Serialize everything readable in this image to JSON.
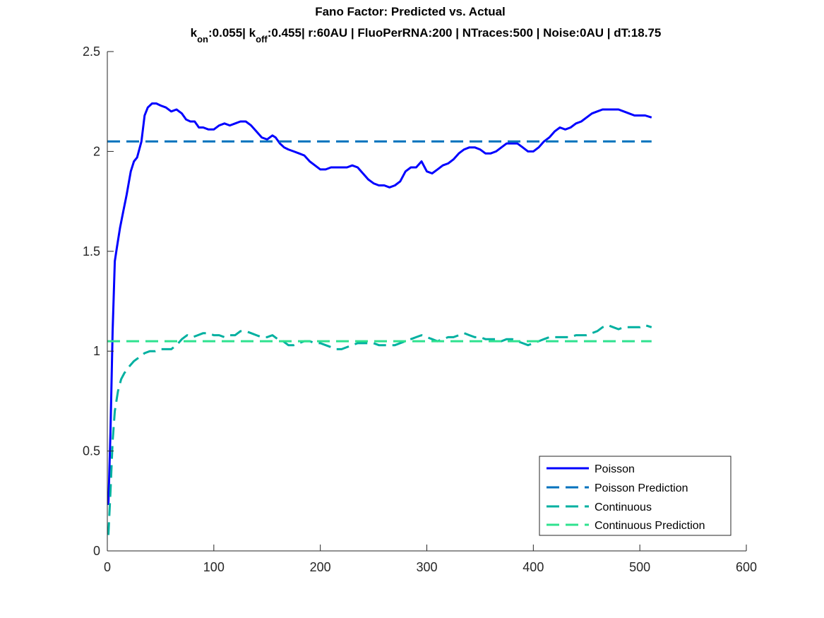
{
  "chart_data": {
    "type": "line",
    "title": "Fano Factor: Predicted vs. Actual",
    "subtitle": {
      "k_on_base": "k",
      "k_on_sub": "on",
      "k_on_value": ":0.055| ",
      "k_off_base": "k",
      "k_off_sub": "off",
      "rest": ":0.455| r:60AU | FluoPerRNA:200 | NTraces:500 | Noise:0AU | dT:18.75"
    },
    "xlabel": "",
    "ylabel": "",
    "xlim": [
      0,
      600
    ],
    "ylim": [
      0,
      2.5
    ],
    "xticks": [
      "0",
      "100",
      "200",
      "300",
      "400",
      "500",
      "600"
    ],
    "yticks": [
      "0",
      "0.5",
      "1",
      "1.5",
      "2",
      "2.5"
    ],
    "grid": false,
    "legend_position": "bottom-right",
    "series": [
      {
        "name": "Poisson",
        "style": "solid",
        "color": "#0000ff",
        "x": [
          1,
          3,
          5,
          7,
          9,
          12,
          15,
          18,
          22,
          25,
          28,
          32,
          35,
          38,
          42,
          46,
          50,
          55,
          60,
          65,
          70,
          74,
          78,
          82,
          86,
          90,
          95,
          100,
          105,
          110,
          115,
          120,
          125,
          130,
          135,
          140,
          145,
          150,
          155,
          158,
          162,
          166,
          170,
          175,
          180,
          185,
          190,
          195,
          200,
          205,
          210,
          215,
          220,
          225,
          230,
          235,
          240,
          245,
          250,
          255,
          260,
          265,
          270,
          275,
          280,
          285,
          290,
          295,
          300,
          305,
          310,
          315,
          320,
          325,
          330,
          335,
          340,
          345,
          350,
          355,
          360,
          365,
          370,
          375,
          380,
          385,
          390,
          395,
          400,
          405,
          410,
          415,
          420,
          425,
          430,
          435,
          440,
          445,
          450,
          455,
          460,
          465,
          470,
          475,
          480,
          485,
          490,
          495,
          500,
          505,
          511
        ],
        "y": [
          0.23,
          0.6,
          1.1,
          1.45,
          1.52,
          1.62,
          1.7,
          1.78,
          1.9,
          1.95,
          1.97,
          2.05,
          2.18,
          2.22,
          2.24,
          2.24,
          2.23,
          2.22,
          2.2,
          2.21,
          2.19,
          2.16,
          2.15,
          2.15,
          2.12,
          2.12,
          2.11,
          2.11,
          2.13,
          2.14,
          2.13,
          2.14,
          2.15,
          2.15,
          2.13,
          2.1,
          2.07,
          2.06,
          2.08,
          2.07,
          2.04,
          2.02,
          2.01,
          2.0,
          1.99,
          1.98,
          1.95,
          1.93,
          1.91,
          1.91,
          1.92,
          1.92,
          1.92,
          1.92,
          1.93,
          1.92,
          1.89,
          1.86,
          1.84,
          1.83,
          1.83,
          1.82,
          1.83,
          1.85,
          1.9,
          1.92,
          1.92,
          1.95,
          1.9,
          1.89,
          1.91,
          1.93,
          1.94,
          1.96,
          1.99,
          2.01,
          2.02,
          2.02,
          2.01,
          1.99,
          1.99,
          2.0,
          2.02,
          2.04,
          2.04,
          2.04,
          2.02,
          2.0,
          2.0,
          2.02,
          2.05,
          2.07,
          2.1,
          2.12,
          2.11,
          2.12,
          2.14,
          2.15,
          2.17,
          2.19,
          2.2,
          2.21,
          2.21,
          2.21,
          2.21,
          2.2,
          2.19,
          2.18,
          2.18,
          2.18,
          2.17
        ]
      },
      {
        "name": "Poisson Prediction",
        "style": "dashed",
        "color": "#0072bd",
        "x": [
          0,
          511
        ],
        "y": [
          2.05,
          2.05
        ]
      },
      {
        "name": "Continuous",
        "style": "dashed",
        "color": "#00b0a0",
        "x": [
          1,
          3,
          5,
          7,
          10,
          13,
          16,
          20,
          25,
          30,
          35,
          40,
          45,
          50,
          55,
          60,
          65,
          70,
          75,
          80,
          85,
          90,
          95,
          100,
          105,
          110,
          115,
          120,
          125,
          130,
          135,
          140,
          145,
          150,
          155,
          160,
          165,
          170,
          175,
          180,
          185,
          190,
          195,
          200,
          205,
          210,
          215,
          220,
          225,
          230,
          235,
          240,
          245,
          250,
          255,
          260,
          265,
          270,
          275,
          280,
          285,
          290,
          295,
          300,
          305,
          310,
          315,
          320,
          325,
          330,
          335,
          340,
          345,
          350,
          355,
          360,
          365,
          370,
          375,
          380,
          385,
          390,
          395,
          400,
          405,
          410,
          415,
          420,
          425,
          430,
          435,
          440,
          445,
          450,
          455,
          460,
          465,
          470,
          475,
          480,
          485,
          490,
          495,
          500,
          505,
          511
        ],
        "y": [
          0.08,
          0.3,
          0.55,
          0.7,
          0.8,
          0.86,
          0.89,
          0.92,
          0.95,
          0.97,
          0.99,
          1.0,
          1.0,
          1.01,
          1.01,
          1.01,
          1.03,
          1.06,
          1.08,
          1.07,
          1.08,
          1.09,
          1.09,
          1.08,
          1.08,
          1.07,
          1.08,
          1.08,
          1.1,
          1.1,
          1.09,
          1.08,
          1.07,
          1.07,
          1.08,
          1.06,
          1.05,
          1.03,
          1.03,
          1.04,
          1.05,
          1.05,
          1.04,
          1.04,
          1.03,
          1.02,
          1.01,
          1.01,
          1.02,
          1.03,
          1.04,
          1.04,
          1.04,
          1.04,
          1.03,
          1.03,
          1.03,
          1.03,
          1.04,
          1.05,
          1.06,
          1.07,
          1.08,
          1.07,
          1.06,
          1.05,
          1.06,
          1.07,
          1.07,
          1.08,
          1.09,
          1.08,
          1.07,
          1.07,
          1.06,
          1.06,
          1.06,
          1.05,
          1.06,
          1.06,
          1.05,
          1.04,
          1.03,
          1.04,
          1.05,
          1.06,
          1.07,
          1.07,
          1.07,
          1.07,
          1.07,
          1.08,
          1.08,
          1.08,
          1.09,
          1.1,
          1.12,
          1.13,
          1.12,
          1.11,
          1.12,
          1.12,
          1.12,
          1.12,
          1.13,
          1.12
        ]
      },
      {
        "name": "Continuous Prediction",
        "style": "dashed",
        "color": "#2fe28f",
        "x": [
          0,
          511
        ],
        "y": [
          1.05,
          1.05
        ]
      }
    ]
  }
}
